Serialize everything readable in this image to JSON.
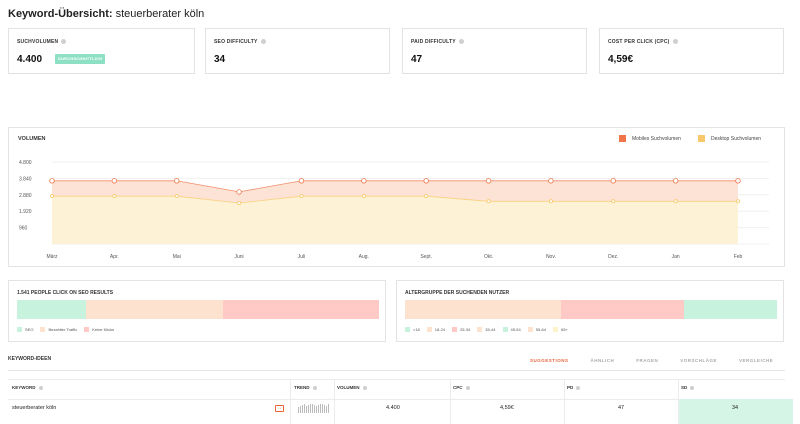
{
  "header": {
    "title_prefix": "Keyword-Übersicht:",
    "keyword": "steuerberater köln"
  },
  "metrics": [
    {
      "label": "SUCHVOLUMEN",
      "value": "4.400",
      "badge": "DURCHSCHNITTLICH"
    },
    {
      "label": "SEO DIFFICULTY",
      "value": "34"
    },
    {
      "label": "PAID DIFFICULTY",
      "value": "47"
    },
    {
      "label": "COST PER CLICK (CPC)",
      "value": "4,59€"
    }
  ],
  "volume_chart": {
    "title": "VOLUMEN",
    "legend": [
      {
        "name": "Mobiles Suchvolumen",
        "color": "#f07548"
      },
      {
        "name": "Desktop Suchvolumen",
        "color": "#f8c96a"
      }
    ]
  },
  "chart_data": {
    "type": "area",
    "categories": [
      "März",
      "Apr.",
      "Mai",
      "Juni",
      "Juli",
      "Aug.",
      "Sept.",
      "Okt.",
      "Nov.",
      "Dez.",
      "Jan",
      "Feb"
    ],
    "y_ticks": [
      "4.800",
      "3.840",
      "2.880",
      "1.920",
      "960"
    ],
    "ylim": [
      0,
      4800
    ],
    "series": [
      {
        "name": "Mobiles Suchvolumen",
        "values": [
          3700,
          3700,
          3700,
          3050,
          3700,
          3700,
          3700,
          3700,
          3700,
          3700,
          3700,
          3700
        ]
      },
      {
        "name": "Desktop Suchvolumen",
        "values": [
          2800,
          2800,
          2800,
          2400,
          2800,
          2800,
          2800,
          2500,
          2500,
          2500,
          2500,
          2500
        ]
      }
    ],
    "grid": true,
    "legend_position": "top-right"
  },
  "seo_clicks": {
    "title": "1.541 PEOPLE CLICK ON SEO RESULTS",
    "segments": [
      {
        "name": "SEO",
        "share": 0.19,
        "color": "#c6f2de"
      },
      {
        "name": "Bezahlter Traffic",
        "share": 0.38,
        "color": "#fde3cf"
      },
      {
        "name": "Keine Klicks",
        "share": 0.43,
        "color": "#ffc9c6"
      }
    ]
  },
  "age_groups": {
    "title": "ALTERGRUPPE DER SUCHENDEN NUTZER",
    "segments": [
      {
        "name": "<18",
        "share": 0.0,
        "color": "#c6f2de"
      },
      {
        "name": "18-24",
        "share": 0.0,
        "color": "#fde3cf"
      },
      {
        "name": "25-34",
        "share": 0.42,
        "color": "#fde3cf"
      },
      {
        "name": "35-44",
        "share": 0.33,
        "color": "#ffc9c6"
      },
      {
        "name": "45-54",
        "share": 0.0,
        "color": "#c6f2de"
      },
      {
        "name": "55-64",
        "share": 0.25,
        "color": "#c6f2de"
      },
      {
        "name": "65+",
        "share": 0.0,
        "color": "#fdf3c8"
      }
    ],
    "legend_colors": [
      "#c6f2de",
      "#fde3cf",
      "#ffc9c6",
      "#fde3cf",
      "#c6f2de",
      "#fde3cf",
      "#fdf3c8"
    ]
  },
  "keyword_ideas": {
    "title": "KEYWORD-IDEEN",
    "tabs": [
      "SUGGESTIONS",
      "ÄHNLICH",
      "FRAGEN",
      "VORSCHLÄGE",
      "VERGLEICHE"
    ],
    "columns": [
      "KEYWORD",
      "TREND",
      "VOLUMEN",
      "CPC",
      "PD",
      "SD"
    ],
    "rows": [
      {
        "keyword": "steuerberater köln",
        "trend_icon": "arrow-icon",
        "volume": "4.400",
        "cpc": "4,59€",
        "pd": "47",
        "sd": "34"
      }
    ]
  }
}
